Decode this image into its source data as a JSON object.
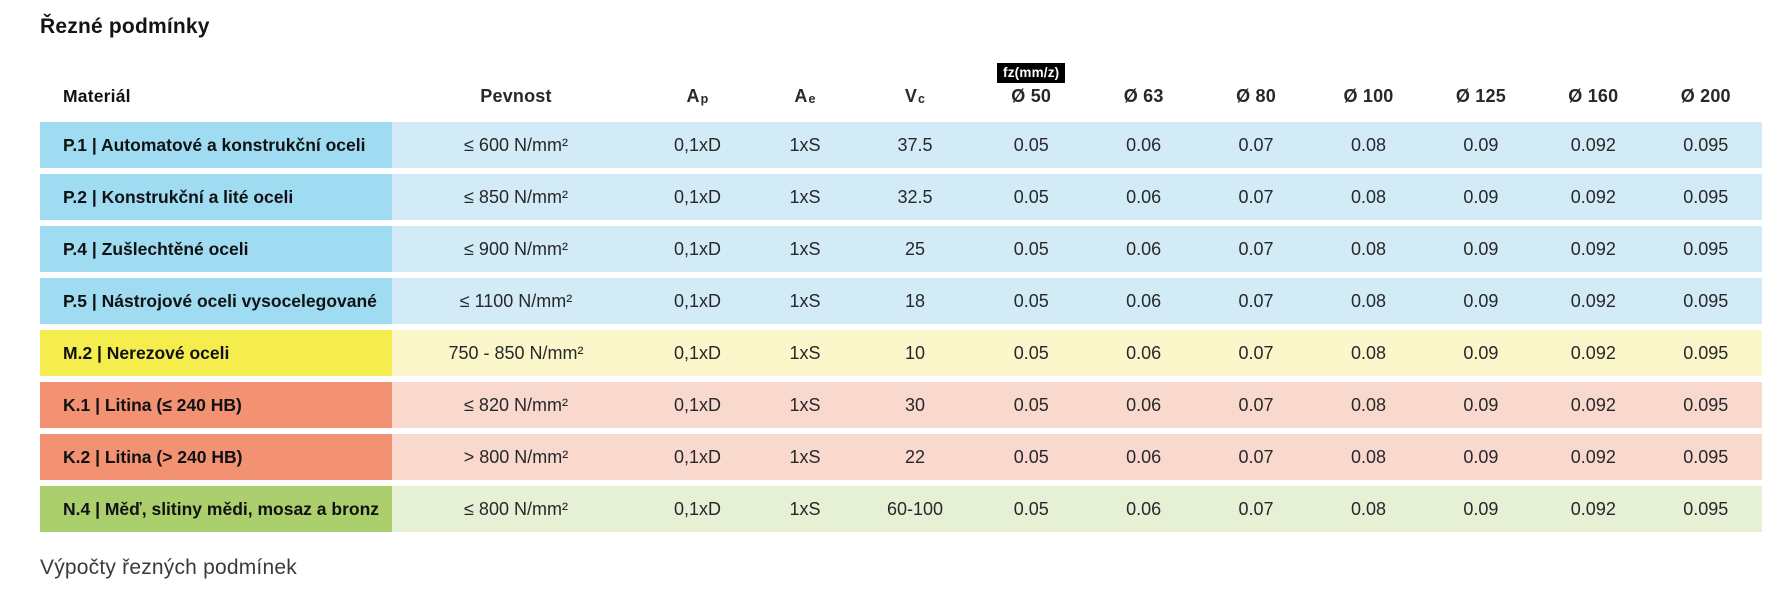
{
  "page": {
    "title": "Řezné podmínky",
    "section_heading": "Výpočty řezných podmínek"
  },
  "table": {
    "headers": {
      "material": "Materiál",
      "pevnost": "Pevnost",
      "ap": {
        "base": "A",
        "sub": "p"
      },
      "ae": {
        "base": "A",
        "sub": "e"
      },
      "vc": {
        "base": "V",
        "sub": "c"
      },
      "fz_badge": "fz(mm/z)",
      "diameters": [
        "Ø 50",
        "Ø 63",
        "Ø 80",
        "Ø 100",
        "Ø 125",
        "Ø 160",
        "Ø 200"
      ]
    },
    "colors": {
      "P": {
        "label": "#9fdbf1",
        "body": "#d2ebf7"
      },
      "M": {
        "label": "#f5ec4d",
        "body": "#fcf7cb"
      },
      "K": {
        "label": "#f29272",
        "body": "#f9d9cd"
      },
      "N": {
        "label": "#accf6d",
        "body": "#e5f0d4"
      }
    },
    "rows": [
      {
        "group": "P",
        "material": "P.1 | Automatové a konstrukční oceli",
        "pevnost": "≤ 600 N/mm²",
        "ap": "0,1xD",
        "ae": "1xS",
        "vc": "37.5",
        "fz": [
          "0.05",
          "0.06",
          "0.07",
          "0.08",
          "0.09",
          "0.092",
          "0.095"
        ]
      },
      {
        "group": "P",
        "material": "P.2 | Konstrukční a lité oceli",
        "pevnost": "≤ 850 N/mm²",
        "ap": "0,1xD",
        "ae": "1xS",
        "vc": "32.5",
        "fz": [
          "0.05",
          "0.06",
          "0.07",
          "0.08",
          "0.09",
          "0.092",
          "0.095"
        ]
      },
      {
        "group": "P",
        "material": "P.4 | Zušlechtěné oceli",
        "pevnost": "≤ 900 N/mm²",
        "ap": "0,1xD",
        "ae": "1xS",
        "vc": "25",
        "fz": [
          "0.05",
          "0.06",
          "0.07",
          "0.08",
          "0.09",
          "0.092",
          "0.095"
        ]
      },
      {
        "group": "P",
        "material": "P.5 | Nástrojové oceli vysocelegované",
        "pevnost": "≤ 1100 N/mm²",
        "ap": "0,1xD",
        "ae": "1xS",
        "vc": "18",
        "fz": [
          "0.05",
          "0.06",
          "0.07",
          "0.08",
          "0.09",
          "0.092",
          "0.095"
        ]
      },
      {
        "group": "M",
        "material": "M.2 | Nerezové oceli",
        "pevnost": "750 - 850 N/mm²",
        "ap": "0,1xD",
        "ae": "1xS",
        "vc": "10",
        "fz": [
          "0.05",
          "0.06",
          "0.07",
          "0.08",
          "0.09",
          "0.092",
          "0.095"
        ]
      },
      {
        "group": "K",
        "material": "K.1 | Litina (≤ 240 HB)",
        "pevnost": "≤ 820 N/mm²",
        "ap": "0,1xD",
        "ae": "1xS",
        "vc": "30",
        "fz": [
          "0.05",
          "0.06",
          "0.07",
          "0.08",
          "0.09",
          "0.092",
          "0.095"
        ]
      },
      {
        "group": "K",
        "material": "K.2 | Litina (> 240 HB)",
        "pevnost": "> 800 N/mm²",
        "ap": "0,1xD",
        "ae": "1xS",
        "vc": "22",
        "fz": [
          "0.05",
          "0.06",
          "0.07",
          "0.08",
          "0.09",
          "0.092",
          "0.095"
        ]
      },
      {
        "group": "N",
        "material": "N.4 | Měď, slitiny mědi, mosaz a bronz",
        "pevnost": "≤ 800 N/mm²",
        "ap": "0,1xD",
        "ae": "1xS",
        "vc": "60-100",
        "fz": [
          "0.05",
          "0.06",
          "0.07",
          "0.08",
          "0.09",
          "0.092",
          "0.095"
        ]
      }
    ]
  }
}
